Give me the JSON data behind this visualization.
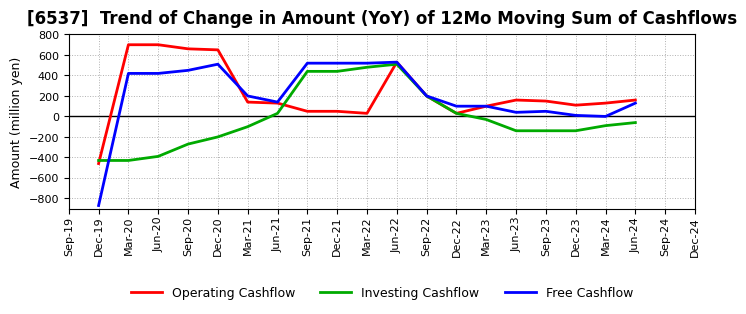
{
  "title": "[6537]  Trend of Change in Amount (YoY) of 12Mo Moving Sum of Cashflows",
  "ylabel": "Amount (million yen)",
  "x_labels": [
    "Sep-19",
    "Dec-19",
    "Mar-20",
    "Jun-20",
    "Sep-20",
    "Dec-20",
    "Mar-21",
    "Jun-21",
    "Sep-21",
    "Dec-21",
    "Mar-22",
    "Jun-22",
    "Sep-22",
    "Dec-22",
    "Mar-23",
    "Jun-23",
    "Sep-23",
    "Dec-23",
    "Mar-24",
    "Jun-24",
    "Sep-24",
    "Dec-24"
  ],
  "operating_cashflow": [
    null,
    -460,
    700,
    700,
    660,
    650,
    140,
    130,
    50,
    50,
    30,
    530,
    200,
    30,
    100,
    160,
    150,
    110,
    130,
    160,
    null,
    null
  ],
  "investing_cashflow": [
    null,
    -430,
    -430,
    -390,
    -270,
    -200,
    -100,
    30,
    440,
    440,
    480,
    510,
    200,
    30,
    -30,
    -140,
    -140,
    -140,
    -90,
    -60,
    null,
    null
  ],
  "free_cashflow": [
    null,
    -870,
    420,
    420,
    450,
    510,
    200,
    140,
    520,
    520,
    520,
    530,
    200,
    100,
    100,
    40,
    50,
    10,
    0,
    130,
    null,
    null
  ],
  "operating_color": "#ff0000",
  "investing_color": "#00aa00",
  "free_color": "#0000ff",
  "ylim": [
    -900,
    800
  ],
  "yticks": [
    -800,
    -600,
    -400,
    -200,
    0,
    200,
    400,
    600,
    800
  ],
  "background_color": "#ffffff",
  "grid_color": "#b0b0b0",
  "title_fontsize": 12,
  "axis_fontsize": 9,
  "tick_fontsize": 8,
  "legend_fontsize": 9,
  "line_width": 2.0
}
